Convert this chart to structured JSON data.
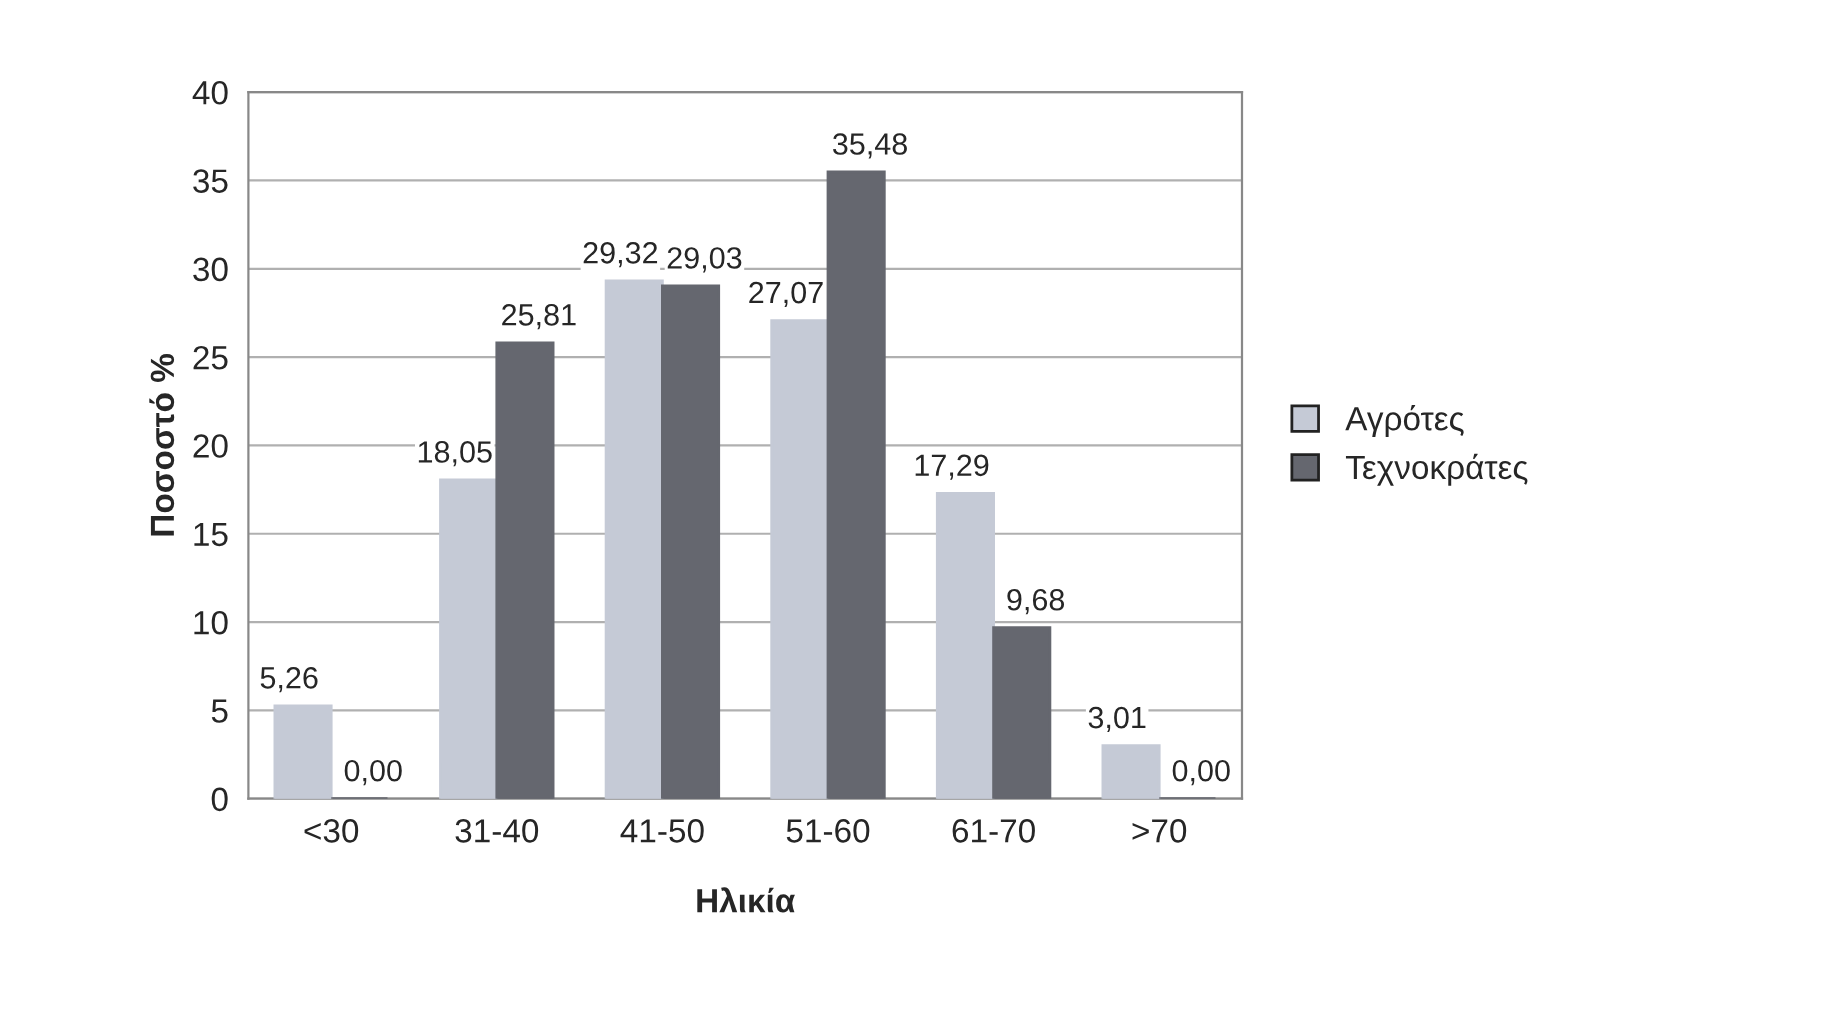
{
  "chart_data": {
    "type": "bar",
    "xlabel": "Ηλικία",
    "ylabel": "Ποσοστό %",
    "categories": [
      "<30",
      "31-40",
      "41-50",
      "51-60",
      "61-70",
      ">70"
    ],
    "series": [
      {
        "name": "Αγρότες",
        "color": "#c5cad6",
        "values": [
          5.26,
          18.05,
          29.32,
          27.07,
          17.29,
          3.01
        ],
        "value_labels": [
          "5,26",
          "18,05",
          "29,32",
          "27,07",
          "17,29",
          "3,01"
        ]
      },
      {
        "name": "Τεχνοκράτες",
        "color": "#65676f",
        "values": [
          0.0,
          25.81,
          29.03,
          35.48,
          9.68,
          0.0
        ],
        "value_labels": [
          "0,00",
          "25,81",
          "29,03",
          "35,48",
          "9,68",
          "0,00"
        ]
      }
    ],
    "ylim": [
      0,
      40
    ],
    "yticks": [
      0,
      5,
      10,
      15,
      20,
      25,
      30,
      35,
      40
    ],
    "grid": "y",
    "legend": "right"
  }
}
